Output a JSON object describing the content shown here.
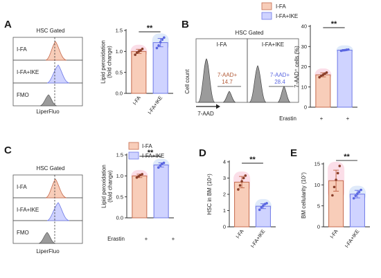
{
  "colors": {
    "ifa_fill": "#f8cdb9",
    "ifa_stroke": "#c46a4d",
    "ike_fill": "#cfd3ff",
    "ike_stroke": "#6d78e6",
    "dot_ifa": "#8a3f2a",
    "dot_ike": "#5a66e0",
    "grey_peak": "#9b9b9b",
    "pink_glow": "#f7c3d6",
    "blue_glow": "#c5d9f6"
  },
  "legend": {
    "ifa": "I-FA",
    "ike": "I-FA+IKE"
  },
  "panels": {
    "A": {
      "letter": "A",
      "flow": {
        "title": "HSC Gated",
        "rows": [
          "I-FA",
          "I-FA+IKE",
          "FMO"
        ],
        "xlabel": "LiperFluo"
      }
    },
    "B": {
      "letter": "B",
      "flow": {
        "title": "HSC Gated",
        "col_titles": [
          "I-FA",
          "I-FA+IKE"
        ],
        "gate_label": "7-AAD+",
        "gate_values": [
          "14.7",
          "28.4"
        ],
        "ylabel": "Cell count",
        "xlabel": "7-AAD"
      },
      "erastin_label": "Erastin",
      "erastin_values": [
        "+",
        "+"
      ]
    },
    "C": {
      "letter": "C",
      "flow": {
        "title": "HSC Gated",
        "rows": [
          "I-FA",
          "I-FA+IKE",
          "FMO"
        ],
        "xlabel": "LiperFluo"
      },
      "erastin_label": "Erastin",
      "erastin_values": [
        "+",
        "+"
      ]
    },
    "D": {
      "letter": "D"
    },
    "E": {
      "letter": "E"
    }
  },
  "chart_data": [
    {
      "id": "A",
      "type": "bar",
      "categories": [
        "I-FA",
        "I-FA+IKE"
      ],
      "ylabel": "Lipid peroxidation\n(fold change)",
      "ylim": [
        0,
        1.5
      ],
      "yticks": [
        "0.0",
        "0.5",
        "1.0",
        "1.5"
      ],
      "values": [
        1.0,
        1.21
      ],
      "errors": [
        0.05,
        0.1
      ],
      "points": [
        [
          0.92,
          0.97,
          1.0,
          1.02,
          1.06
        ],
        [
          1.08,
          1.14,
          1.22,
          1.28,
          1.33
        ]
      ],
      "significance": "**"
    },
    {
      "id": "B",
      "type": "bar",
      "categories": [
        "I-FA",
        "I-FA+IKE"
      ],
      "ylabel": "7-AAD⁺ cells (%)",
      "ylim": [
        0,
        40
      ],
      "yticks": [
        "0",
        "10",
        "20",
        "30",
        "40"
      ],
      "values": [
        16,
        28.2
      ],
      "errors": [
        1.0,
        0.3
      ],
      "points": [
        [
          14.8,
          15.5,
          16.0,
          16.6,
          17.1
        ],
        [
          27.9,
          28.1,
          28.2,
          28.4,
          28.5
        ]
      ],
      "significance": "**"
    },
    {
      "id": "C",
      "type": "bar",
      "categories": [
        "I-FA",
        "I-FA+IKE"
      ],
      "ylabel": "Lipid peroxidation\n(fold change)",
      "ylim": [
        0,
        1.5
      ],
      "yticks": [
        "0.0",
        "0.5",
        "1.0",
        "1.5"
      ],
      "values": [
        1.0,
        1.26
      ],
      "errors": [
        0.04,
        0.05
      ],
      "points": [
        [
          0.96,
          0.99,
          1.02,
          1.04
        ],
        [
          1.2,
          1.25,
          1.29,
          1.31
        ]
      ],
      "significance": "**"
    },
    {
      "id": "D",
      "type": "bar",
      "categories": [
        "I-FA",
        "I-FA+IKE"
      ],
      "ylabel": "HSC in BM (10⁴)",
      "ylim": [
        0,
        4
      ],
      "yticks": [
        "0",
        "1",
        "2",
        "3",
        "4"
      ],
      "values": [
        2.75,
        1.27
      ],
      "errors": [
        0.35,
        0.15
      ],
      "points": [
        [
          2.3,
          2.55,
          2.8,
          3.0,
          3.15
        ],
        [
          1.05,
          1.2,
          1.3,
          1.4,
          1.45
        ]
      ],
      "significance": "**"
    },
    {
      "id": "E",
      "type": "bar",
      "categories": [
        "I-FA",
        "I-FA+IKE"
      ],
      "ylabel": "BM cellularity (10⁷)",
      "ylim": [
        0,
        15
      ],
      "yticks": [
        "0",
        "5",
        "10",
        "15"
      ],
      "values": [
        11.0,
        7.8
      ],
      "errors": [
        2.5,
        0.9
      ],
      "points": [
        [
          7.5,
          9.5,
          11.2,
          12.8,
          14.5
        ],
        [
          6.8,
          7.4,
          7.9,
          8.3,
          8.8
        ]
      ],
      "significance": "**"
    }
  ]
}
